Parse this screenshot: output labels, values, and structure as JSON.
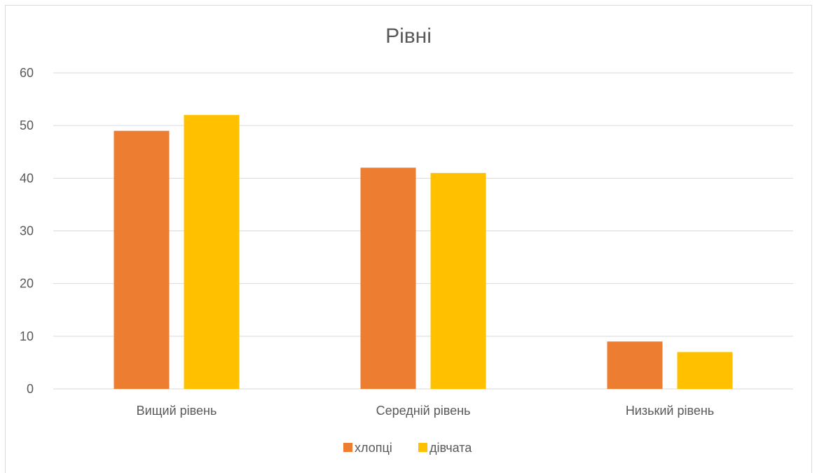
{
  "chart_data": {
    "type": "bar",
    "title": "Рівні",
    "categories": [
      "Вищий рівень",
      "Середній рівень",
      "Низький рівень"
    ],
    "series": [
      {
        "name": "хлопці",
        "values": [
          49,
          42,
          9
        ],
        "color": "#ED7D31"
      },
      {
        "name": "дівчата",
        "values": [
          52,
          41,
          7
        ],
        "color": "#FFC000"
      }
    ],
    "ylim": [
      0,
      60
    ],
    "yticks": [
      0,
      10,
      20,
      30,
      40,
      50,
      60
    ],
    "grid": true,
    "legend": "bottom"
  }
}
